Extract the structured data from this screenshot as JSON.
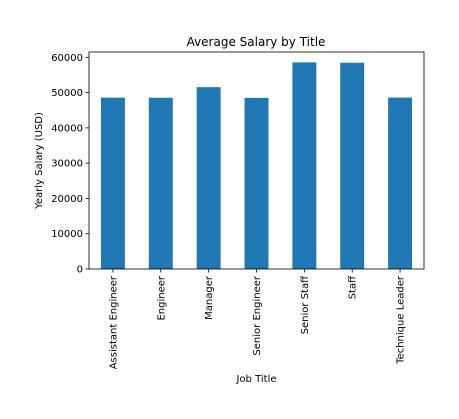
{
  "chart_data": {
    "type": "bar",
    "title": "Average Salary by Title",
    "xlabel": "Job Title",
    "ylabel": "Yearly Salary (USD)",
    "categories": [
      "Assistant Engineer",
      "Engineer",
      "Manager",
      "Senior Engineer",
      "Senior Staff",
      "Staff",
      "Technique Leader"
    ],
    "values": [
      48560,
      48535,
      51531,
      48507,
      58550,
      58465,
      48583
    ],
    "ylim": [
      0,
      61500
    ],
    "yticks": [
      0,
      10000,
      20000,
      30000,
      40000,
      50000,
      60000
    ],
    "grid": false,
    "legend": "none",
    "bar_color": "#1f77b4"
  }
}
